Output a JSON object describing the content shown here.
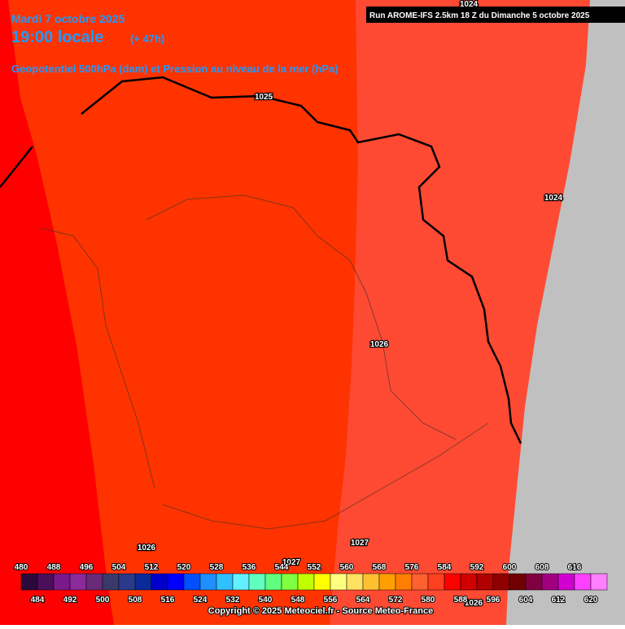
{
  "header": {
    "date": "Mardi 7 octobre 2025",
    "time": "19:00 locale",
    "lead": "(+ 47h)",
    "subtitle": "Geopotentiel 500hPa (dam) et Pression au niveau de la mer (hPa)",
    "run": "Run AROME-IFS 2.5km 18 Z du Dimanche 5 octobre 2025"
  },
  "isobar_labels": [
    "1024",
    "1025",
    "1024",
    "1026",
    "1026",
    "1027",
    "1027",
    "1026"
  ],
  "legend": {
    "values": [
      480,
      484,
      488,
      492,
      496,
      500,
      504,
      508,
      512,
      516,
      520,
      524,
      528,
      532,
      536,
      540,
      544,
      548,
      552,
      556,
      560,
      564,
      568,
      572,
      576,
      580,
      584,
      588,
      592,
      596,
      600,
      604,
      608,
      612,
      616,
      620
    ],
    "colors": [
      "#2a0a3a",
      "#4b0f5a",
      "#7a1a8a",
      "#8b2a9a",
      "#6a2a7a",
      "#3a3a6a",
      "#2a3a8a",
      "#0a2a9a",
      "#0000cc",
      "#0000ff",
      "#0050ff",
      "#1f8fff",
      "#30c0ff",
      "#60f0ff",
      "#60ffc0",
      "#60ff80",
      "#80ff40",
      "#c0ff00",
      "#ffff00",
      "#ffff80",
      "#ffe060",
      "#ffc030",
      "#ffa000",
      "#ff8000",
      "#ff6030",
      "#ff4020",
      "#ff0000",
      "#d00000",
      "#b00000",
      "#900000",
      "#700000",
      "#800040",
      "#a00080",
      "#d000d0",
      "#ff40ff",
      "#ff80ff"
    ]
  },
  "footer": {
    "copyright": "Copyright © 2025 Meteociel.fr - Source Meteo-France"
  }
}
